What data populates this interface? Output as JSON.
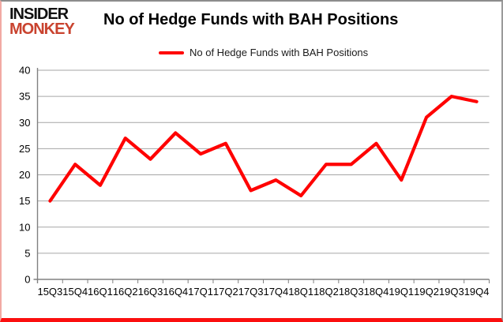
{
  "logo": {
    "line1": "INSIDER",
    "line2": "MONKEY",
    "brand_color": "#c9432f"
  },
  "header": {
    "title": "No of Hedge Funds with BAH Positions"
  },
  "legend": {
    "label": "No of Hedge Funds with BAH Positions",
    "line_color": "#ff0000"
  },
  "chart_data": {
    "type": "line",
    "title": "No of Hedge Funds with BAH Positions",
    "categories": [
      "15Q3",
      "15Q4",
      "16Q1",
      "16Q2",
      "16Q3",
      "16Q4",
      "17Q1",
      "17Q2",
      "17Q3",
      "17Q4",
      "18Q1",
      "18Q2",
      "18Q3",
      "18Q4",
      "19Q1",
      "19Q2",
      "19Q3",
      "19Q4"
    ],
    "values": [
      15,
      22,
      18,
      27,
      23,
      28,
      24,
      26,
      17,
      19,
      16,
      22,
      22,
      26,
      19,
      31,
      35,
      34
    ],
    "series_name": "No of Hedge Funds with BAH Positions",
    "xlabel": "",
    "ylabel": "",
    "ylim": [
      0,
      40
    ],
    "ytick_step": 5,
    "yticks": [
      0,
      5,
      10,
      15,
      20,
      25,
      30,
      35,
      40
    ],
    "grid": true,
    "legend_position": "top",
    "line_color": "#ff0000",
    "grid_color": "#a6a6a6",
    "axis_color": "#808080"
  }
}
